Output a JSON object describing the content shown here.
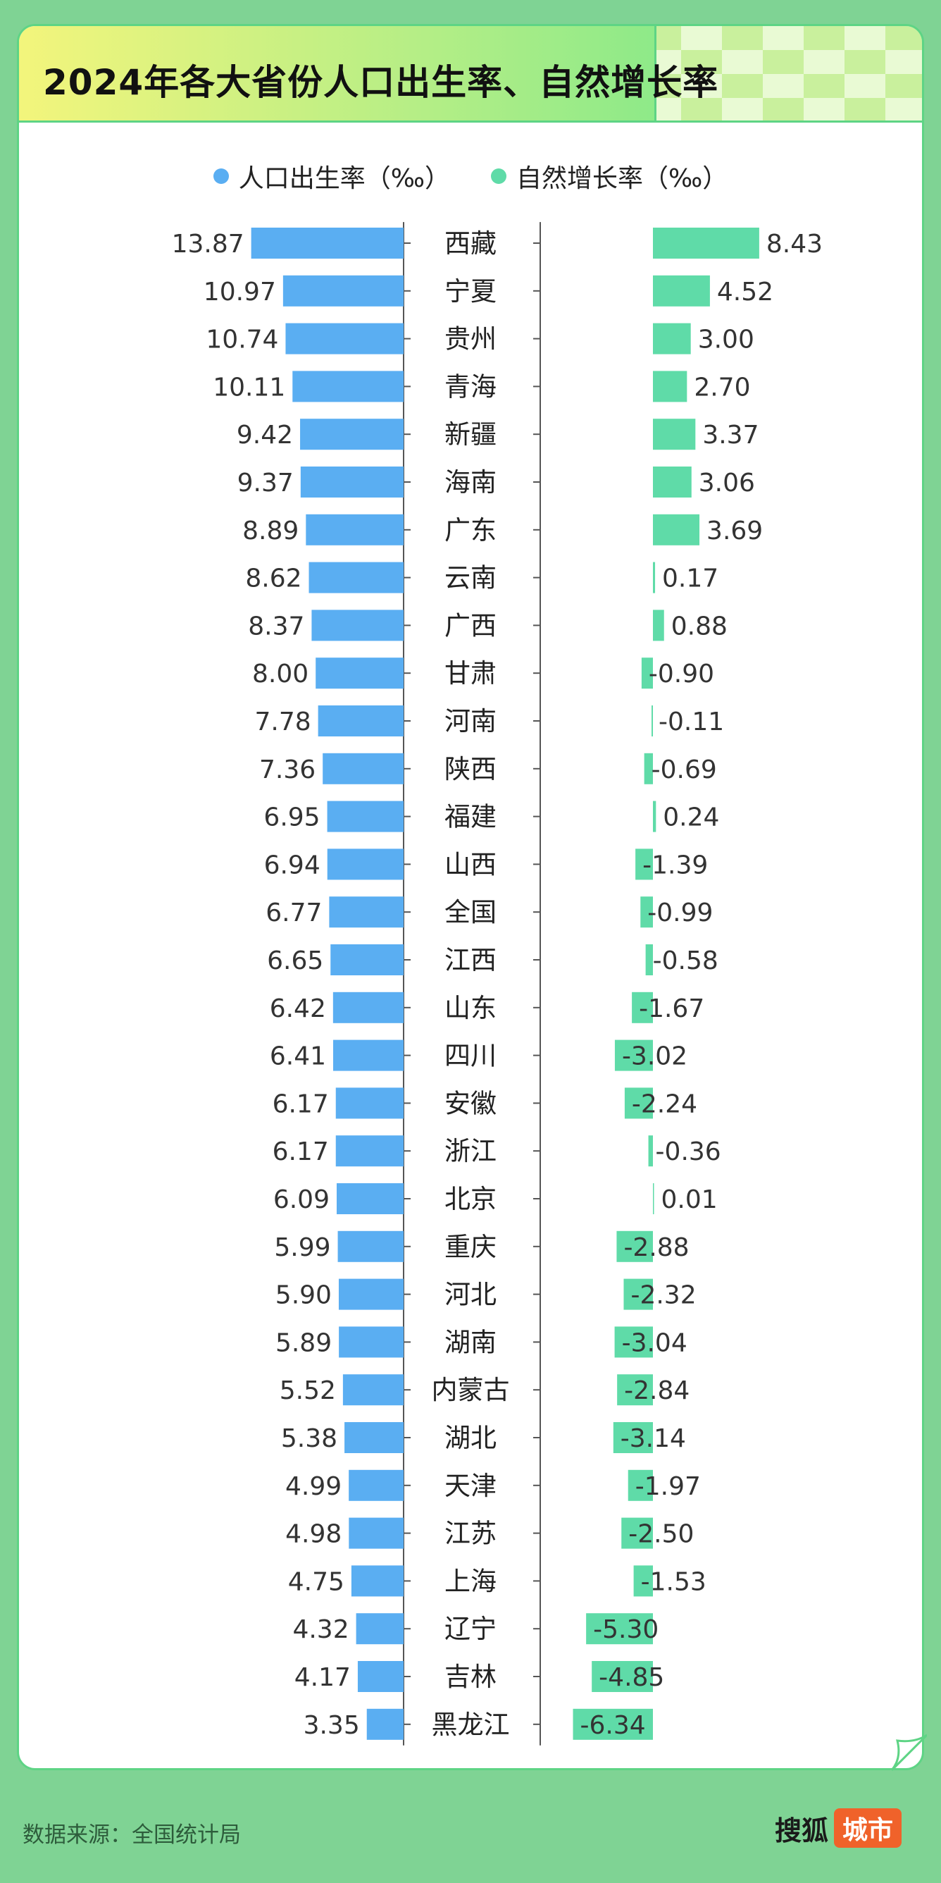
{
  "title": "2024年各大省份人口出生率、自然增长率",
  "source": "数据来源：全国统计局",
  "brand": {
    "name": "搜狐",
    "tag": "城市"
  },
  "colors": {
    "birth_rate": "#5aaef2",
    "natural_growth": "#5fdba8",
    "background": "#7fd394",
    "card_border": "#5ed485",
    "brand_tag": "#f0622a"
  },
  "chart_data": {
    "type": "bar",
    "layout": "butterfly",
    "title": "2024年各大省份人口出生率、自然增长率",
    "legend_position": "top-center",
    "grid": false,
    "categories": [
      "西藏",
      "宁夏",
      "贵州",
      "青海",
      "新疆",
      "海南",
      "广东",
      "云南",
      "广西",
      "甘肃",
      "河南",
      "陕西",
      "福建",
      "山西",
      "全国",
      "江西",
      "山东",
      "四川",
      "安徽",
      "浙江",
      "北京",
      "重庆",
      "河北",
      "湖南",
      "内蒙古",
      "湖北",
      "天津",
      "江苏",
      "上海",
      "辽宁",
      "吉林",
      "黑龙江"
    ],
    "series": [
      {
        "name": "人口出生率（‰）",
        "side": "left",
        "labels": [
          "13.87",
          "10.97",
          "10.74",
          "10.11",
          "9.42",
          "9.37",
          "8.89",
          "8.62",
          "8.37",
          "8.00",
          "7.78",
          "7.36",
          "6.95",
          "6.94",
          "6.77",
          "6.65",
          "6.42",
          "6.41",
          "6.17",
          "6.17",
          "6.09",
          "5.99",
          "5.90",
          "5.89",
          "5.52",
          "5.38",
          "4.99",
          "4.98",
          "4.75",
          "4.32",
          "4.17",
          "3.35"
        ],
        "values": [
          13.87,
          10.97,
          10.74,
          10.11,
          9.42,
          9.37,
          8.89,
          8.62,
          8.37,
          8.0,
          7.78,
          7.36,
          6.95,
          6.94,
          6.77,
          6.65,
          6.42,
          6.41,
          6.17,
          6.17,
          6.09,
          5.99,
          5.9,
          5.89,
          5.52,
          5.38,
          4.99,
          4.98,
          4.75,
          4.32,
          4.17,
          3.35
        ]
      },
      {
        "name": "自然增长率（‰）",
        "side": "right",
        "labels": [
          "8.43",
          "4.52",
          "3.00",
          "2.70",
          "3.37",
          "3.06",
          "3.69",
          "0.17",
          "0.88",
          "-0.90",
          "-0.11",
          "-0.69",
          "0.24",
          "-1.39",
          "-0.99",
          "-0.58",
          "-1.67",
          "-3.02",
          "-2.24",
          "-0.36",
          "0.01",
          "-2.88",
          "-2.32",
          "-3.04",
          "-2.84",
          "-3.14",
          "-1.97",
          "-2.50",
          "-1.53",
          "-5.30",
          "-4.85",
          "-6.34"
        ],
        "values": [
          8.43,
          4.52,
          3.0,
          2.7,
          3.37,
          3.06,
          3.69,
          0.17,
          0.88,
          -0.9,
          -0.11,
          -0.69,
          0.24,
          -1.39,
          -0.99,
          -0.58,
          -1.67,
          -3.02,
          -2.24,
          -0.36,
          0.01,
          -2.88,
          -2.32,
          -3.04,
          -2.84,
          -3.14,
          -1.97,
          -2.5,
          -1.53,
          -5.3,
          -4.85,
          -6.34
        ]
      }
    ]
  }
}
